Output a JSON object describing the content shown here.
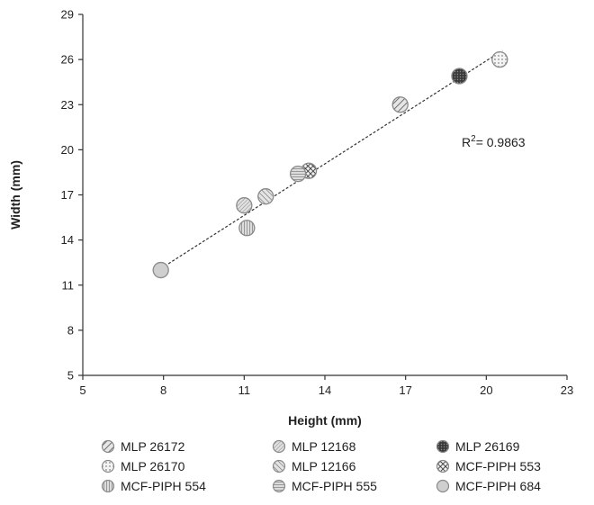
{
  "chart_data": {
    "type": "scatter",
    "xlabel": "Height (mm)",
    "ylabel": "Width (mm)",
    "xlim": [
      5,
      23
    ],
    "ylim": [
      5,
      29
    ],
    "xticks": [
      "5",
      "8",
      "11",
      "14",
      "17",
      "20",
      "23"
    ],
    "yticks": [
      "5",
      "8",
      "11",
      "14",
      "17",
      "20",
      "23",
      "26",
      "29"
    ],
    "grid": false,
    "legend_position": "bottom",
    "annotation": {
      "prefix": "R",
      "superscript": "2",
      "text": "= 0.9863"
    },
    "trendline": {
      "type": "linear",
      "x": [
        7.9,
        20.6
      ],
      "y": [
        12.1,
        26.6
      ]
    },
    "series": [
      {
        "name": "MLP 26172",
        "pattern": "diag-hatch",
        "x": [
          16.8
        ],
        "y": [
          23.0
        ]
      },
      {
        "name": "MLP 12168",
        "pattern": "dense-diag",
        "x": [
          11.0
        ],
        "y": [
          16.3
        ]
      },
      {
        "name": "MLP 26169",
        "pattern": "dark-dots",
        "x": [
          19.0
        ],
        "y": [
          24.9
        ]
      },
      {
        "name": "MLP 26170",
        "pattern": "sparse-dots",
        "x": [
          20.5
        ],
        "y": [
          26.0
        ]
      },
      {
        "name": "MLP 12166",
        "pattern": "back-diag",
        "x": [
          11.8
        ],
        "y": [
          16.9
        ]
      },
      {
        "name": "MCF-PIPH 553",
        "pattern": "crosshatch",
        "x": [
          13.4
        ],
        "y": [
          18.6
        ]
      },
      {
        "name": "MCF-PIPH 554",
        "pattern": "vertical",
        "x": [
          11.1
        ],
        "y": [
          14.8
        ]
      },
      {
        "name": "MCF-PIPH 555",
        "pattern": "horizontal",
        "x": [
          13.0
        ],
        "y": [
          18.4
        ]
      },
      {
        "name": "MCF-PIPH 684",
        "pattern": "solid-light",
        "x": [
          7.9
        ],
        "y": [
          12.0
        ]
      }
    ]
  }
}
